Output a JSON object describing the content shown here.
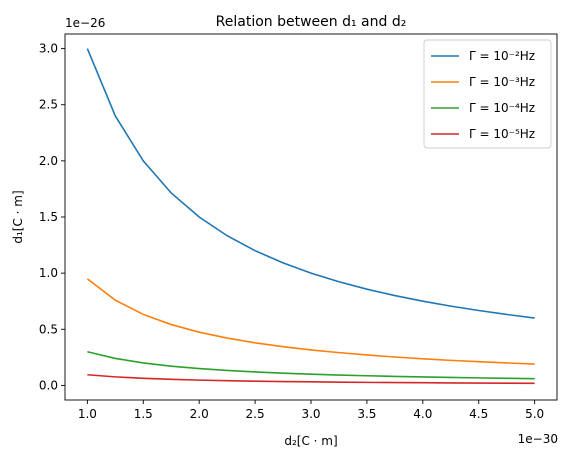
{
  "chart_data": {
    "type": "line",
    "title": "Relation between d₁ and d₂",
    "xlabel": "d₂[C · m]",
    "ylabel": "d₁[C · m]",
    "x_offset_label": "1e−30",
    "y_offset_label": "1e−26",
    "xlim": [
      0.8,
      5.2
    ],
    "ylim": [
      -0.13,
      3.13
    ],
    "xticks": [
      1.0,
      1.5,
      2.0,
      2.5,
      3.0,
      3.5,
      4.0,
      4.5,
      5.0
    ],
    "xtick_labels": [
      "1.0",
      "1.5",
      "2.0",
      "2.5",
      "3.0",
      "3.5",
      "4.0",
      "4.5",
      "5.0"
    ],
    "yticks": [
      0.0,
      0.5,
      1.0,
      1.5,
      2.0,
      2.5,
      3.0
    ],
    "ytick_labels": [
      "0.0",
      "0.5",
      "1.0",
      "1.5",
      "2.0",
      "2.5",
      "3.0"
    ],
    "grid": false,
    "legend_position": "top-right",
    "x": [
      1.0,
      1.25,
      1.5,
      1.75,
      2.0,
      2.25,
      2.5,
      2.75,
      3.0,
      3.25,
      3.5,
      3.75,
      4.0,
      4.25,
      4.5,
      4.75,
      5.0
    ],
    "series": [
      {
        "name": "Γ = 10⁻²Hz",
        "color": "#1f77b4",
        "values": [
          3.0,
          2.4,
          2.0,
          1.714,
          1.5,
          1.333,
          1.2,
          1.091,
          1.0,
          0.923,
          0.857,
          0.8,
          0.75,
          0.706,
          0.667,
          0.632,
          0.6
        ]
      },
      {
        "name": "Γ = 10⁻³Hz",
        "color": "#ff7f0e",
        "values": [
          0.949,
          0.759,
          0.632,
          0.542,
          0.474,
          0.422,
          0.379,
          0.345,
          0.316,
          0.292,
          0.271,
          0.253,
          0.237,
          0.223,
          0.211,
          0.2,
          0.19
        ]
      },
      {
        "name": "Γ = 10⁻⁴Hz",
        "color": "#2ca02c",
        "values": [
          0.3,
          0.24,
          0.2,
          0.171,
          0.15,
          0.133,
          0.12,
          0.109,
          0.1,
          0.092,
          0.086,
          0.08,
          0.075,
          0.071,
          0.067,
          0.063,
          0.06
        ]
      },
      {
        "name": "Γ = 10⁻⁵Hz",
        "color": "#d62728",
        "values": [
          0.095,
          0.076,
          0.063,
          0.054,
          0.047,
          0.042,
          0.038,
          0.034,
          0.032,
          0.029,
          0.027,
          0.025,
          0.024,
          0.022,
          0.021,
          0.02,
          0.019
        ]
      }
    ]
  }
}
